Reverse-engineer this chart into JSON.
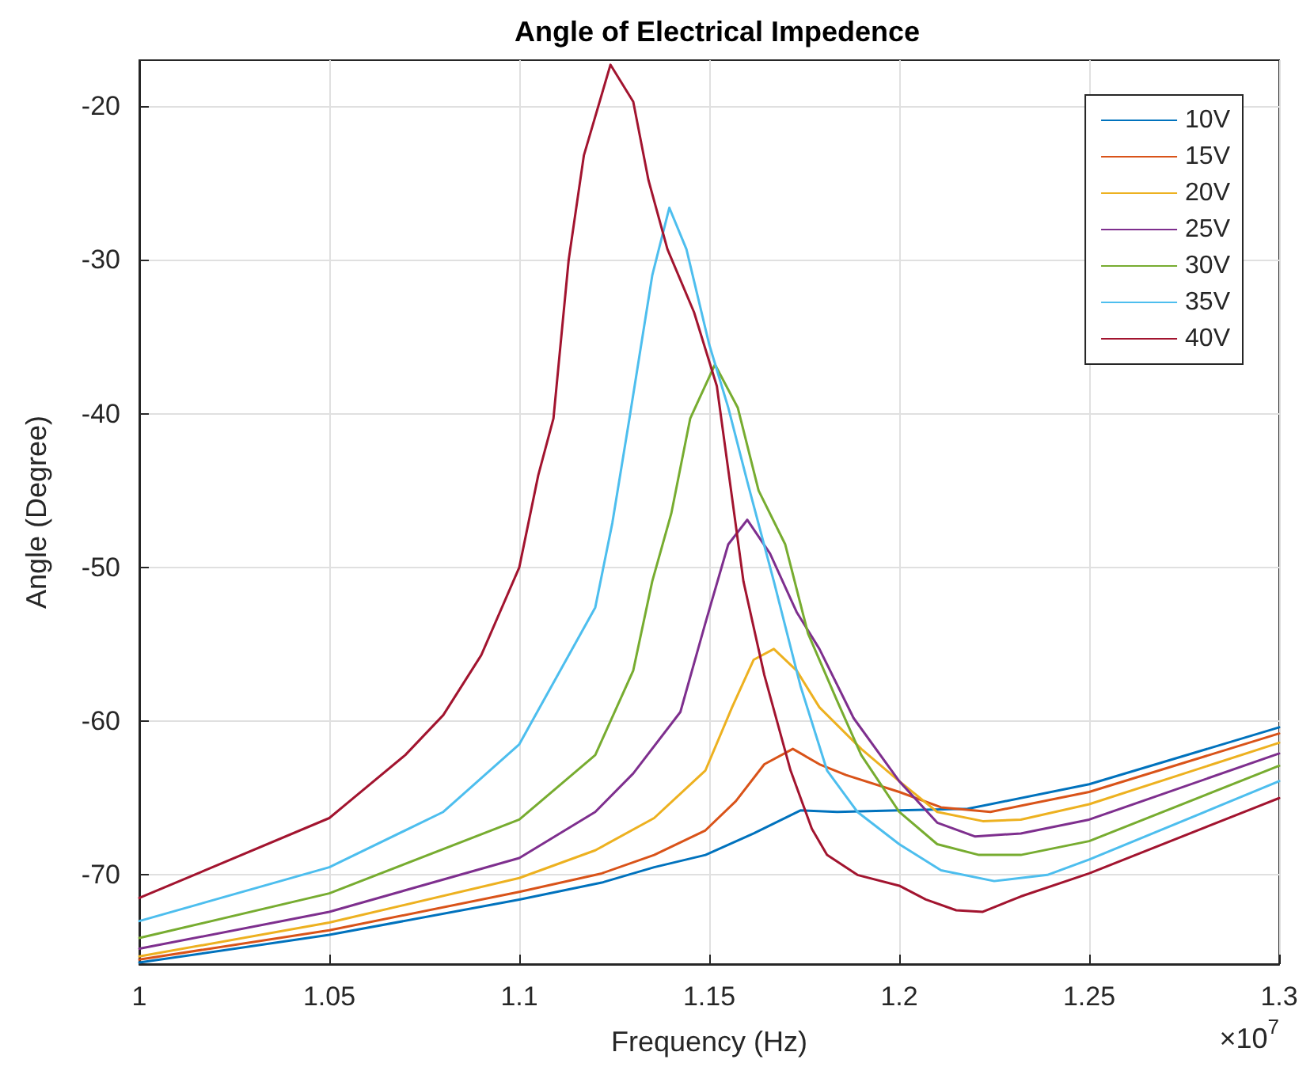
{
  "chart_data": {
    "type": "line",
    "title": "Angle of Electrical Impedence",
    "xlabel": "Frequency (Hz)",
    "ylabel": "Angle (Degree)",
    "annotations": [
      "×10$^{7}$"
    ],
    "xlim": [
      1,
      1.3
    ],
    "xticks": [
      1,
      1.05,
      1.1,
      1.15,
      1.2,
      1.25,
      1.3
    ],
    "ylim": [
      -75.8,
      -17
    ],
    "yticks": [
      -70,
      -60,
      -50,
      -40,
      -30,
      -20
    ],
    "grid": true,
    "legend": "top right",
    "marker": "none",
    "line_style": "solid",
    "series": [
      {
        "name": "10V",
        "color": "#0072bd",
        "x": [
          1,
          1.05,
          1.1,
          1.1217,
          1.1355,
          1.149,
          1.1617,
          1.174,
          1.1837,
          1.2,
          1.218,
          1.25,
          1.3
        ],
        "values": [
          -75.7,
          -73.9,
          -71.6,
          -70.5,
          -69.5,
          -68.7,
          -67.3,
          -65.8,
          -65.9,
          -65.8,
          -65.7,
          -64.1,
          -60.4
        ]
      },
      {
        "name": "15V",
        "color": "#d95319",
        "x": [
          1,
          1.05,
          1.1,
          1.1217,
          1.1355,
          1.149,
          1.157,
          1.1645,
          1.172,
          1.179,
          1.186,
          1.2,
          1.211,
          1.224,
          1.25,
          1.3
        ],
        "values": [
          -75.5,
          -73.6,
          -71.1,
          -69.9,
          -68.7,
          -67.1,
          -65.2,
          -62.8,
          -61.8,
          -62.8,
          -63.5,
          -64.6,
          -65.6,
          -65.9,
          -64.6,
          -60.8
        ]
      },
      {
        "name": "20V",
        "color": "#edb120",
        "x": [
          1,
          1.05,
          1.1,
          1.12,
          1.1355,
          1.149,
          1.156,
          1.1617,
          1.167,
          1.173,
          1.179,
          1.19,
          1.2,
          1.21,
          1.222,
          1.232,
          1.25,
          1.3
        ],
        "values": [
          -75.3,
          -73.1,
          -70.2,
          -68.4,
          -66.3,
          -63.2,
          -59.1,
          -56,
          -55.3,
          -56.7,
          -59.1,
          -61.8,
          -63.9,
          -65.9,
          -66.5,
          -66.4,
          -65.4,
          -61.4
        ]
      },
      {
        "name": "25V",
        "color": "#7e2f8e",
        "x": [
          1,
          1.05,
          1.1,
          1.12,
          1.13,
          1.1424,
          1.149,
          1.155,
          1.16,
          1.166,
          1.173,
          1.179,
          1.188,
          1.2,
          1.21,
          1.22,
          1.232,
          1.25,
          1.3
        ],
        "values": [
          -74.8,
          -72.4,
          -68.9,
          -65.9,
          -63.4,
          -59.4,
          -53.6,
          -48.5,
          -46.9,
          -49.1,
          -52.9,
          -55.3,
          -59.8,
          -63.9,
          -66.6,
          -67.5,
          -67.3,
          -66.4,
          -62.1
        ]
      },
      {
        "name": "30V",
        "color": "#77ac30",
        "x": [
          1,
          1.05,
          1.1,
          1.12,
          1.13,
          1.135,
          1.14,
          1.145,
          1.1515,
          1.1575,
          1.163,
          1.17,
          1.176,
          1.1837,
          1.19,
          1.2,
          1.21,
          1.221,
          1.232,
          1.25,
          1.3
        ],
        "values": [
          -74.1,
          -71.2,
          -66.4,
          -62.2,
          -56.7,
          -50.9,
          -46.5,
          -40.3,
          -36.8,
          -39.6,
          -45,
          -48.5,
          -54.3,
          -58.7,
          -62.2,
          -65.9,
          -68,
          -68.7,
          -68.7,
          -67.8,
          -62.9
        ]
      },
      {
        "name": "35V",
        "color": "#4dbeee",
        "x": [
          1,
          1.05,
          1.08,
          1.1,
          1.12,
          1.1245,
          1.129,
          1.135,
          1.1395,
          1.144,
          1.15,
          1.155,
          1.16,
          1.167,
          1.174,
          1.181,
          1.189,
          1.2,
          1.211,
          1.225,
          1.239,
          1.25,
          1.3
        ],
        "values": [
          -73,
          -69.5,
          -65.9,
          -61.5,
          -52.6,
          -47.1,
          -40.3,
          -31,
          -26.6,
          -29.3,
          -35.5,
          -39.6,
          -44.4,
          -50.9,
          -57.7,
          -63.2,
          -65.9,
          -68,
          -69.7,
          -70.4,
          -70,
          -69,
          -63.9
        ]
      },
      {
        "name": "40V",
        "color": "#a2142f",
        "x": [
          1,
          1.05,
          1.07,
          1.08,
          1.09,
          1.1,
          1.105,
          1.109,
          1.113,
          1.117,
          1.124,
          1.13,
          1.134,
          1.139,
          1.146,
          1.152,
          1.159,
          1.1645,
          1.1714,
          1.177,
          1.181,
          1.189,
          1.2,
          1.207,
          1.215,
          1.222,
          1.232,
          1.25,
          1.3
        ],
        "values": [
          -71.5,
          -66.3,
          -62.2,
          -59.6,
          -55.7,
          -50,
          -44,
          -40.3,
          -30,
          -23.2,
          -17.3,
          -19.7,
          -24.8,
          -29.3,
          -33.4,
          -38.2,
          -50.9,
          -57,
          -63.2,
          -67,
          -68.7,
          -70,
          -70.7,
          -71.6,
          -72.3,
          -72.4,
          -71.4,
          -69.9,
          -65
        ]
      }
    ]
  }
}
